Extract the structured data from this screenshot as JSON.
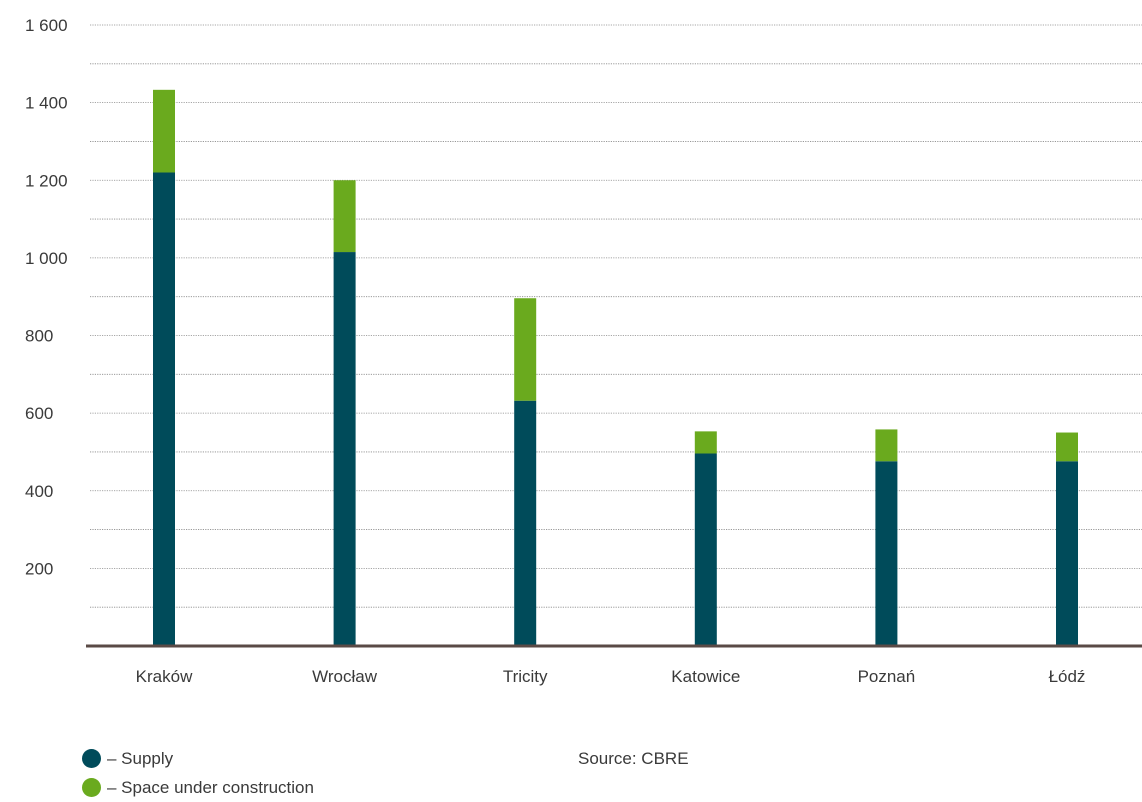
{
  "chart_data": {
    "type": "bar",
    "stacked": true,
    "categories": [
      "Kraków",
      "Wrocław",
      "Tricity",
      "Katowice",
      "Poznań",
      "Łódź"
    ],
    "series": [
      {
        "name": "Supply",
        "color": "#004b5a",
        "values": [
          1220,
          1015,
          632,
          496,
          476,
          476
        ]
      },
      {
        "name": "Space under construction",
        "color": "#6aaa1e",
        "values": [
          213,
          185,
          264,
          57,
          82,
          74
        ]
      }
    ],
    "yticks": [
      200,
      400,
      600,
      800,
      1000,
      1200,
      1400,
      1600
    ],
    "ytick_labels": [
      "200",
      "400",
      "600",
      "800",
      "1 000",
      "1 200",
      "1 400",
      "1 600"
    ],
    "ylim": [
      0,
      1600
    ],
    "minor_gridlines": true,
    "legend_position": "bottom-left"
  },
  "legend": {
    "items": [
      {
        "label": "– Supply",
        "color": "#004b5a"
      },
      {
        "label": "– Space under construction",
        "color": "#6aaa1e"
      }
    ]
  },
  "source": "Source: CBRE"
}
